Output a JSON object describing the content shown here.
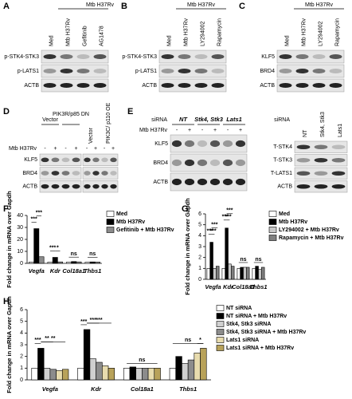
{
  "blots": [
    {
      "panel": "A",
      "header": "Mtb H37Rv",
      "lanes": [
        "Med",
        "Mtb H37Rv",
        "Gefitinib",
        "AG1478"
      ],
      "rows": [
        "p-STK4-STK3",
        "p-LATS1",
        "ACTB"
      ]
    },
    {
      "panel": "B",
      "header": "Mtb H37Rv",
      "lanes": [
        "Med",
        "Mtb H37Rv",
        "LY294002",
        "Rapamycin"
      ],
      "rows": [
        "p-STK4-STK3",
        "p-LATS1",
        "ACTB"
      ]
    },
    {
      "panel": "C",
      "header": "Mtb H37Rv",
      "lanes": [
        "Med",
        "Mtb H37Rv",
        "LY294002",
        "Rapamycin"
      ],
      "rows": [
        "KLF5",
        "BRD4",
        "ACTB"
      ]
    }
  ],
  "panel_d": {
    "panel": "D",
    "groups": [
      "Vector",
      "PIK3R/p85 DN",
      "Vector",
      "PIK3C/ p110 OE"
    ],
    "treatment": "Mtb H37Rv",
    "signs": [
      "-",
      "+",
      "-",
      "+",
      "-",
      "+",
      "-",
      "+"
    ],
    "rows": [
      "KLF5",
      "BRD4",
      "ACTB"
    ]
  },
  "panel_e": {
    "panel": "E",
    "sirna": "siRNA",
    "groups": [
      "NT",
      "Stk4, Stk3",
      "Lats1"
    ],
    "treatment": "Mtb H37Rv",
    "signs": [
      "-",
      "+",
      "-",
      "+",
      "-",
      "+"
    ],
    "rows": [
      "KLF5",
      "BRD4",
      "ACTB"
    ],
    "right_sirna": "siRNA",
    "right_lanes": [
      "NT",
      "Stk4, Stk3",
      "Lats1"
    ],
    "right_rows": [
      "T-STK4",
      "T-STK3",
      "T-LATS1",
      "ACTB"
    ]
  },
  "chart_data": [
    {
      "type": "bar",
      "title": "F",
      "y_label": "Fold change in mRNA over Gapdh",
      "categories": [
        "Vegfa",
        "Kdr",
        "Col18a1",
        "Thbs1"
      ],
      "series": [
        {
          "name": "Med",
          "color": "#ffffff",
          "values": [
            1,
            1,
            1,
            1
          ]
        },
        {
          "name": "Mtb H37Rv",
          "color": "#000000",
          "values": [
            29,
            5,
            1.5,
            1.2
          ]
        },
        {
          "name": "Gefitinib + Mtb H37Rv",
          "color": "#8c8c8c",
          "values": [
            5.5,
            1.2,
            1.2,
            1.1
          ]
        }
      ],
      "ylim": [
        0,
        40
      ],
      "yticks": [
        0,
        10,
        20,
        30,
        40
      ],
      "annotations": [
        "***",
        "***",
        "***",
        "*",
        "ns",
        "ns"
      ]
    },
    {
      "type": "bar",
      "title": "G",
      "y_label": "Fold change in mRNA over Gapdh",
      "categories": [
        "Vegfa",
        "Kdr",
        "Col18a1",
        "Thbs1"
      ],
      "series": [
        {
          "name": "Med",
          "color": "#ffffff",
          "values": [
            1,
            1,
            1,
            1
          ]
        },
        {
          "name": "Mtb H37Rv",
          "color": "#000000",
          "values": [
            3.4,
            4.7,
            1.1,
            1.2
          ]
        },
        {
          "name": "LY294002 + Mtb H37Rv",
          "color": "#c8c8c8",
          "values": [
            1,
            1.4,
            1.1,
            0.9
          ]
        },
        {
          "name": "Rapamycin + Mtb H37Rv",
          "color": "#808080",
          "values": [
            1.2,
            1.2,
            1.1,
            1.1
          ]
        }
      ],
      "ylim": [
        0,
        6
      ],
      "yticks": [
        0,
        1,
        2,
        3,
        4,
        5,
        6
      ],
      "annotations": [
        "***",
        "***",
        "***",
        "***",
        "***",
        "***",
        "ns",
        "ns"
      ]
    },
    {
      "type": "bar",
      "title": "H",
      "y_label": "Fold change in mRNA over Gapdh",
      "categories": [
        "Vegfa",
        "Kdr",
        "Col18a1",
        "Thbs1"
      ],
      "series": [
        {
          "name": "NT siRNA",
          "color": "#ffffff",
          "values": [
            1,
            1,
            1,
            1
          ]
        },
        {
          "name": "NT siRNA + Mtb H37Rv",
          "color": "#000000",
          "values": [
            2.7,
            4.3,
            1.1,
            2
          ]
        },
        {
          "name": "Stk4, Stk3 siRNA",
          "color": "#d0d0d0",
          "values": [
            1,
            1.8,
            1,
            1.4
          ]
        },
        {
          "name": "Stk4, Stk3 siRNA + Mtb H37Rv",
          "color": "#8c8c8c",
          "values": [
            0.9,
            1.5,
            1,
            1.7
          ]
        },
        {
          "name": "Lats1 siRNA",
          "color": "#e8dcae",
          "values": [
            0.8,
            1.2,
            1,
            2.3
          ]
        },
        {
          "name": "Lats1 siRNA + Mtb H37Rv",
          "color": "#b8a25a",
          "values": [
            0.9,
            1,
            1,
            2.7
          ]
        }
      ],
      "ylim": [
        0,
        6
      ],
      "yticks": [
        0,
        1,
        2,
        3,
        4,
        5,
        6
      ],
      "annotations": [
        "***",
        "**",
        "**",
        "***",
        "***",
        "***",
        "ns",
        "ns",
        "*"
      ]
    }
  ]
}
